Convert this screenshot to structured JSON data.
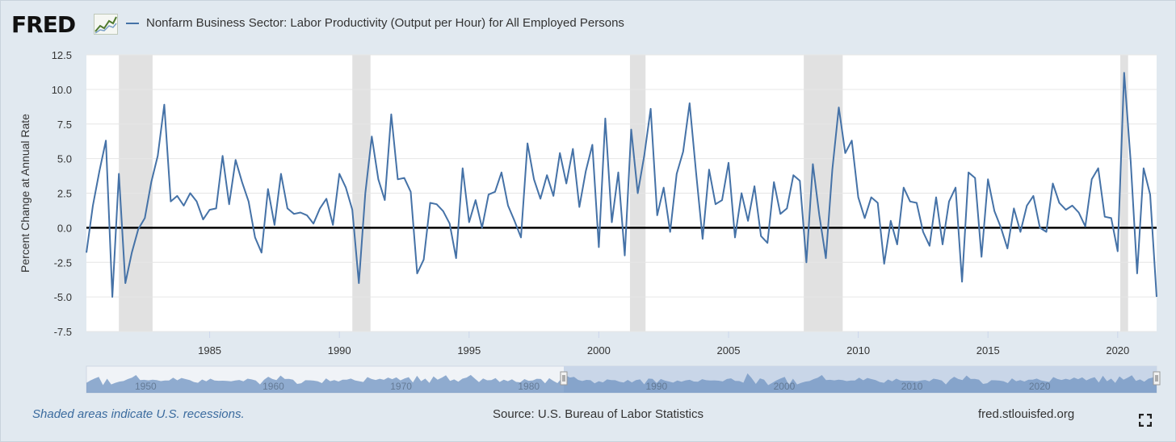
{
  "header": {
    "logo_text": "FRED",
    "logo_icon": "line-chart-icon",
    "legend_label": "Nonfarm Business Sector: Labor Productivity (Output per Hour) for All Employed Persons"
  },
  "footer": {
    "note": "Shaded areas indicate U.S. recessions.",
    "source": "Source: U.S. Bureau of Labor Statistics",
    "site": "fred.stlouisfed.org",
    "fullscreen_icon": "fullscreen-icon"
  },
  "colors": {
    "series": "#4572a7",
    "recession": "#e1e1e1",
    "zero_line": "#000000",
    "background": "#e1e9f0"
  },
  "chart_data": {
    "type": "line",
    "title": "",
    "xlabel": "",
    "ylabel": "Percent Change at Annual Rate",
    "xlim": [
      1980.25,
      2021.5
    ],
    "ylim": [
      -7.5,
      12.5
    ],
    "yticks": [
      -7.5,
      -5.0,
      -2.5,
      0.0,
      2.5,
      5.0,
      7.5,
      10.0,
      12.5
    ],
    "ytick_labels": [
      "-7.5",
      "-5.0",
      "-2.5",
      "0.0",
      "2.5",
      "5.0",
      "7.5",
      "10.0",
      "12.5"
    ],
    "xticks": [
      1985,
      1990,
      1995,
      2000,
      2005,
      2010,
      2015,
      2020
    ],
    "xtick_labels": [
      "1985",
      "1990",
      "1995",
      "2000",
      "2005",
      "2010",
      "2015",
      "2020"
    ],
    "grid": true,
    "legend": "top-left",
    "recessions": [
      [
        1981.5,
        1982.8
      ],
      [
        1990.5,
        1991.2
      ],
      [
        2001.2,
        2001.8
      ],
      [
        2007.9,
        2009.4
      ],
      [
        2020.1,
        2020.4
      ]
    ],
    "zero_line": 0.0,
    "navigator_labels": [
      "1950",
      "1960",
      "1970",
      "1980",
      "1990",
      "2000",
      "2010",
      "2020"
    ],
    "series": [
      {
        "name": "Nonfarm Business Sector: Labor Productivity (Output per Hour) for All Employed Persons",
        "x": [
          1980.25,
          1980.5,
          1980.75,
          1981.0,
          1981.25,
          1981.5,
          1981.75,
          1982.0,
          1982.25,
          1982.5,
          1982.75,
          1983.0,
          1983.25,
          1983.5,
          1983.75,
          1984.0,
          1984.25,
          1984.5,
          1984.75,
          1985.0,
          1985.25,
          1985.5,
          1985.75,
          1986.0,
          1986.25,
          1986.5,
          1986.75,
          1987.0,
          1987.25,
          1987.5,
          1987.75,
          1988.0,
          1988.25,
          1988.5,
          1988.75,
          1989.0,
          1989.25,
          1989.5,
          1989.75,
          1990.0,
          1990.25,
          1990.5,
          1990.75,
          1991.0,
          1991.25,
          1991.5,
          1991.75,
          1992.0,
          1992.25,
          1992.5,
          1992.75,
          1993.0,
          1993.25,
          1993.5,
          1993.75,
          1994.0,
          1994.25,
          1994.5,
          1994.75,
          1995.0,
          1995.25,
          1995.5,
          1995.75,
          1996.0,
          1996.25,
          1996.5,
          1996.75,
          1997.0,
          1997.25,
          1997.5,
          1997.75,
          1998.0,
          1998.25,
          1998.5,
          1998.75,
          1999.0,
          1999.25,
          1999.5,
          1999.75,
          2000.0,
          2000.25,
          2000.5,
          2000.75,
          2001.0,
          2001.25,
          2001.5,
          2001.75,
          2002.0,
          2002.25,
          2002.5,
          2002.75,
          2003.0,
          2003.25,
          2003.5,
          2003.75,
          2004.0,
          2004.25,
          2004.5,
          2004.75,
          2005.0,
          2005.25,
          2005.5,
          2005.75,
          2006.0,
          2006.25,
          2006.5,
          2006.75,
          2007.0,
          2007.25,
          2007.5,
          2007.75,
          2008.0,
          2008.25,
          2008.5,
          2008.75,
          2009.0,
          2009.25,
          2009.5,
          2009.75,
          2010.0,
          2010.25,
          2010.5,
          2010.75,
          2011.0,
          2011.25,
          2011.5,
          2011.75,
          2012.0,
          2012.25,
          2012.5,
          2012.75,
          2013.0,
          2013.25,
          2013.5,
          2013.75,
          2014.0,
          2014.25,
          2014.5,
          2014.75,
          2015.0,
          2015.25,
          2015.5,
          2015.75,
          2016.0,
          2016.25,
          2016.5,
          2016.75,
          2017.0,
          2017.25,
          2017.5,
          2017.75,
          2018.0,
          2018.25,
          2018.5,
          2018.75,
          2019.0,
          2019.25,
          2019.5,
          2019.75,
          2020.0,
          2020.25,
          2020.5,
          2020.75,
          2021.0,
          2021.25,
          2021.5
        ],
        "values": [
          -1.8,
          1.6,
          4.1,
          6.3,
          -5.0,
          3.9,
          -4.0,
          -1.8,
          -0.1,
          0.7,
          3.3,
          5.2,
          8.9,
          1.9,
          2.3,
          1.6,
          2.5,
          1.9,
          0.6,
          1.3,
          1.4,
          5.2,
          1.7,
          4.9,
          3.3,
          1.9,
          -0.7,
          -1.8,
          2.8,
          0.2,
          3.9,
          1.4,
          1.0,
          1.1,
          0.9,
          0.3,
          1.4,
          2.1,
          0.2,
          3.9,
          2.9,
          1.3,
          -4.0,
          2.5,
          6.6,
          3.5,
          2.0,
          8.2,
          3.5,
          3.6,
          2.6,
          -3.3,
          -2.3,
          1.8,
          1.7,
          1.2,
          0.3,
          -2.2,
          4.3,
          0.4,
          2.0,
          0.0,
          2.4,
          2.6,
          4.0,
          1.6,
          0.5,
          -0.7,
          6.1,
          3.5,
          2.1,
          3.8,
          2.3,
          5.4,
          3.2,
          5.7,
          1.5,
          4.1,
          6.0,
          -1.4,
          7.9,
          0.4,
          4.0,
          -2.0,
          7.1,
          2.5,
          5.2,
          8.6,
          0.9,
          2.9,
          -0.3,
          3.9,
          5.5,
          9.0,
          4.0,
          -0.8,
          4.2,
          1.7,
          2.0,
          4.7,
          -0.7,
          2.5,
          0.5,
          3.0,
          -0.6,
          -1.1,
          3.3,
          1.0,
          1.4,
          3.8,
          3.4,
          -2.5,
          4.6,
          0.9,
          -2.2,
          4.2,
          8.7,
          5.4,
          6.3,
          2.2,
          0.7,
          2.2,
          1.8,
          -2.6,
          0.5,
          -1.2,
          2.9,
          1.9,
          1.8,
          -0.3,
          -1.3,
          2.2,
          -1.2,
          1.9,
          2.9,
          -3.9,
          4.0,
          3.6,
          -2.1,
          3.5,
          1.2,
          0.0,
          -1.5,
          1.4,
          -0.3,
          1.6,
          2.3,
          0.0,
          -0.3,
          3.2,
          1.8,
          1.3,
          1.6,
          1.1,
          0.1,
          3.5,
          4.3,
          0.8,
          0.7,
          -1.7,
          11.2,
          4.8,
          -3.3,
          4.3,
          2.4,
          -5.0
        ]
      }
    ]
  }
}
